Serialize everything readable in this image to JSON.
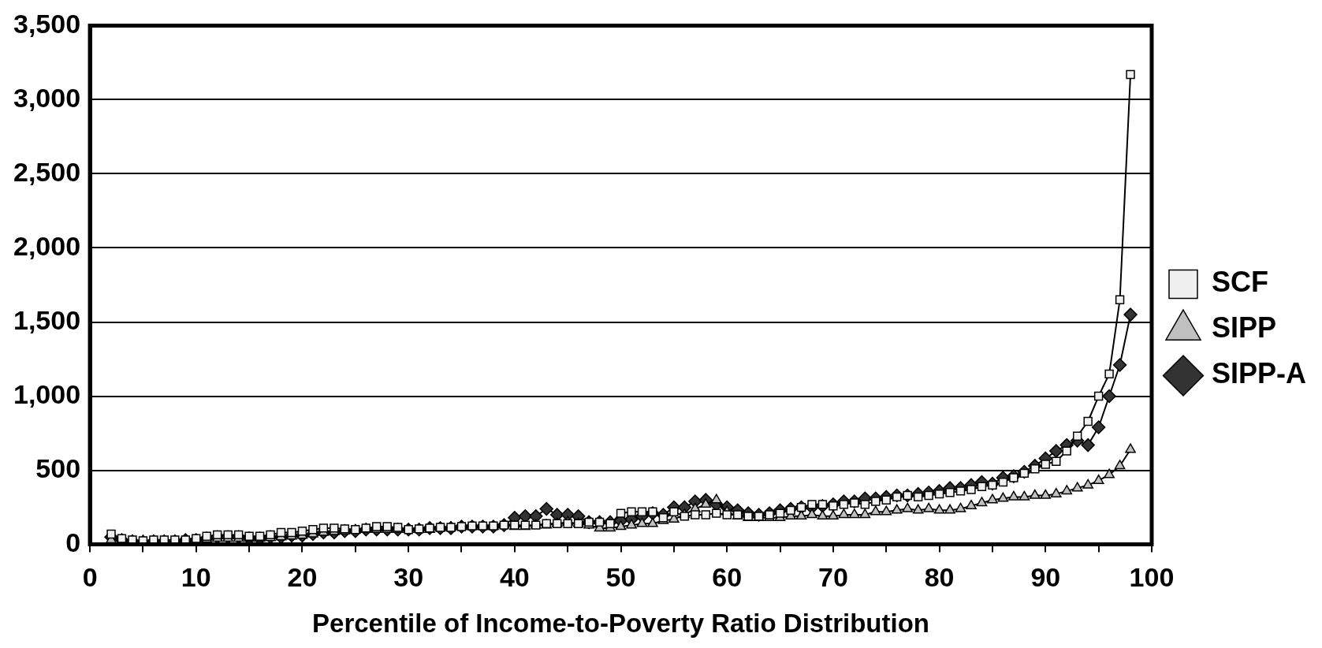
{
  "chart_data": {
    "type": "line",
    "xlabel": "Percentile of Income-to-Poverty Ratio Distribution",
    "x": [
      2,
      3,
      4,
      5,
      6,
      7,
      8,
      9,
      10,
      11,
      12,
      13,
      14,
      15,
      16,
      17,
      18,
      19,
      20,
      21,
      22,
      23,
      24,
      25,
      26,
      27,
      28,
      29,
      30,
      31,
      32,
      33,
      34,
      35,
      36,
      37,
      38,
      39,
      40,
      41,
      42,
      43,
      44,
      45,
      46,
      47,
      48,
      49,
      50,
      51,
      52,
      53,
      54,
      55,
      56,
      57,
      58,
      59,
      60,
      61,
      62,
      63,
      64,
      65,
      66,
      67,
      68,
      69,
      70,
      71,
      72,
      73,
      74,
      75,
      76,
      77,
      78,
      79,
      80,
      81,
      82,
      83,
      84,
      85,
      86,
      87,
      88,
      89,
      90,
      91,
      92,
      93,
      94,
      95,
      96,
      97,
      98
    ],
    "series": [
      {
        "name": "SCF",
        "color": "#f0f0f0",
        "marker": "square",
        "values": [
          70,
          40,
          30,
          25,
          30,
          30,
          30,
          30,
          40,
          55,
          65,
          65,
          65,
          55,
          55,
          65,
          80,
          80,
          90,
          100,
          110,
          110,
          105,
          100,
          110,
          120,
          120,
          115,
          100,
          105,
          110,
          115,
          115,
          120,
          125,
          125,
          125,
          130,
          130,
          130,
          130,
          140,
          140,
          140,
          140,
          150,
          150,
          140,
          210,
          220,
          220,
          220,
          180,
          220,
          190,
          200,
          200,
          210,
          200,
          200,
          190,
          190,
          200,
          210,
          230,
          250,
          270,
          270,
          260,
          270,
          280,
          270,
          290,
          300,
          320,
          330,
          320,
          330,
          340,
          350,
          360,
          370,
          390,
          400,
          420,
          450,
          480,
          510,
          540,
          560,
          630,
          730,
          830,
          1000,
          1150,
          1650,
          3170
        ]
      },
      {
        "name": "SIPP",
        "color": "#c0c0c0",
        "marker": "triangle",
        "values": [
          30,
          25,
          25,
          25,
          25,
          25,
          25,
          30,
          30,
          35,
          40,
          40,
          40,
          40,
          40,
          45,
          50,
          55,
          60,
          70,
          80,
          85,
          90,
          95,
          100,
          100,
          100,
          100,
          100,
          100,
          100,
          110,
          115,
          120,
          120,
          120,
          120,
          130,
          120,
          120,
          130,
          130,
          140,
          150,
          140,
          130,
          110,
          110,
          120,
          130,
          140,
          140,
          160,
          170,
          200,
          240,
          270,
          300,
          220,
          190,
          180,
          180,
          180,
          180,
          190,
          190,
          200,
          190,
          190,
          200,
          200,
          200,
          220,
          220,
          230,
          240,
          230,
          240,
          230,
          230,
          240,
          260,
          280,
          300,
          310,
          320,
          320,
          330,
          330,
          340,
          360,
          380,
          400,
          430,
          470,
          530,
          640
        ]
      },
      {
        "name": "SIPP-A",
        "color": "#333333",
        "marker": "diamond",
        "values": [
          50,
          30,
          20,
          15,
          20,
          20,
          20,
          30,
          30,
          40,
          50,
          50,
          50,
          40,
          40,
          50,
          50,
          60,
          60,
          70,
          80,
          80,
          90,
          90,
          100,
          100,
          100,
          100,
          100,
          100,
          110,
          110,
          110,
          120,
          120,
          120,
          120,
          130,
          180,
          190,
          190,
          240,
          200,
          200,
          190,
          150,
          150,
          150,
          160,
          170,
          190,
          210,
          200,
          250,
          250,
          290,
          300,
          270,
          250,
          230,
          210,
          200,
          210,
          230,
          240,
          250,
          250,
          260,
          270,
          290,
          290,
          310,
          310,
          320,
          330,
          330,
          340,
          350,
          360,
          380,
          380,
          400,
          420,
          410,
          450,
          460,
          490,
          530,
          580,
          630,
          670,
          700,
          670,
          790,
          1000,
          1210,
          1550
        ]
      }
    ],
    "xlim": [
      0,
      100
    ],
    "xticks": [
      0,
      {
        "value": 5,
        "label": null
      },
      10,
      {
        "value": 15,
        "label": null
      },
      20,
      {
        "value": 25,
        "label": null
      },
      30,
      {
        "value": 35,
        "label": null
      },
      40,
      {
        "value": 45,
        "label": null
      },
      50,
      {
        "value": 55,
        "label": null
      },
      60,
      {
        "value": 65,
        "label": null
      },
      70,
      {
        "value": 75,
        "label": null
      },
      80,
      {
        "value": 85,
        "label": null
      },
      90,
      {
        "value": 95,
        "label": null
      },
      100
    ],
    "ylim": [
      0,
      3500
    ],
    "yticks": [
      0,
      500,
      {
        "value": 1000,
        "label": "1,000"
      },
      {
        "value": 1500,
        "label": "1,500"
      },
      {
        "value": 2000,
        "label": "2,000"
      },
      {
        "value": 2500,
        "label": "2,500"
      },
      {
        "value": 3000,
        "label": "3,000"
      },
      {
        "value": 3500,
        "label": "3,500"
      }
    ],
    "grid": "y",
    "legend": "right",
    "line_style": "solid"
  }
}
